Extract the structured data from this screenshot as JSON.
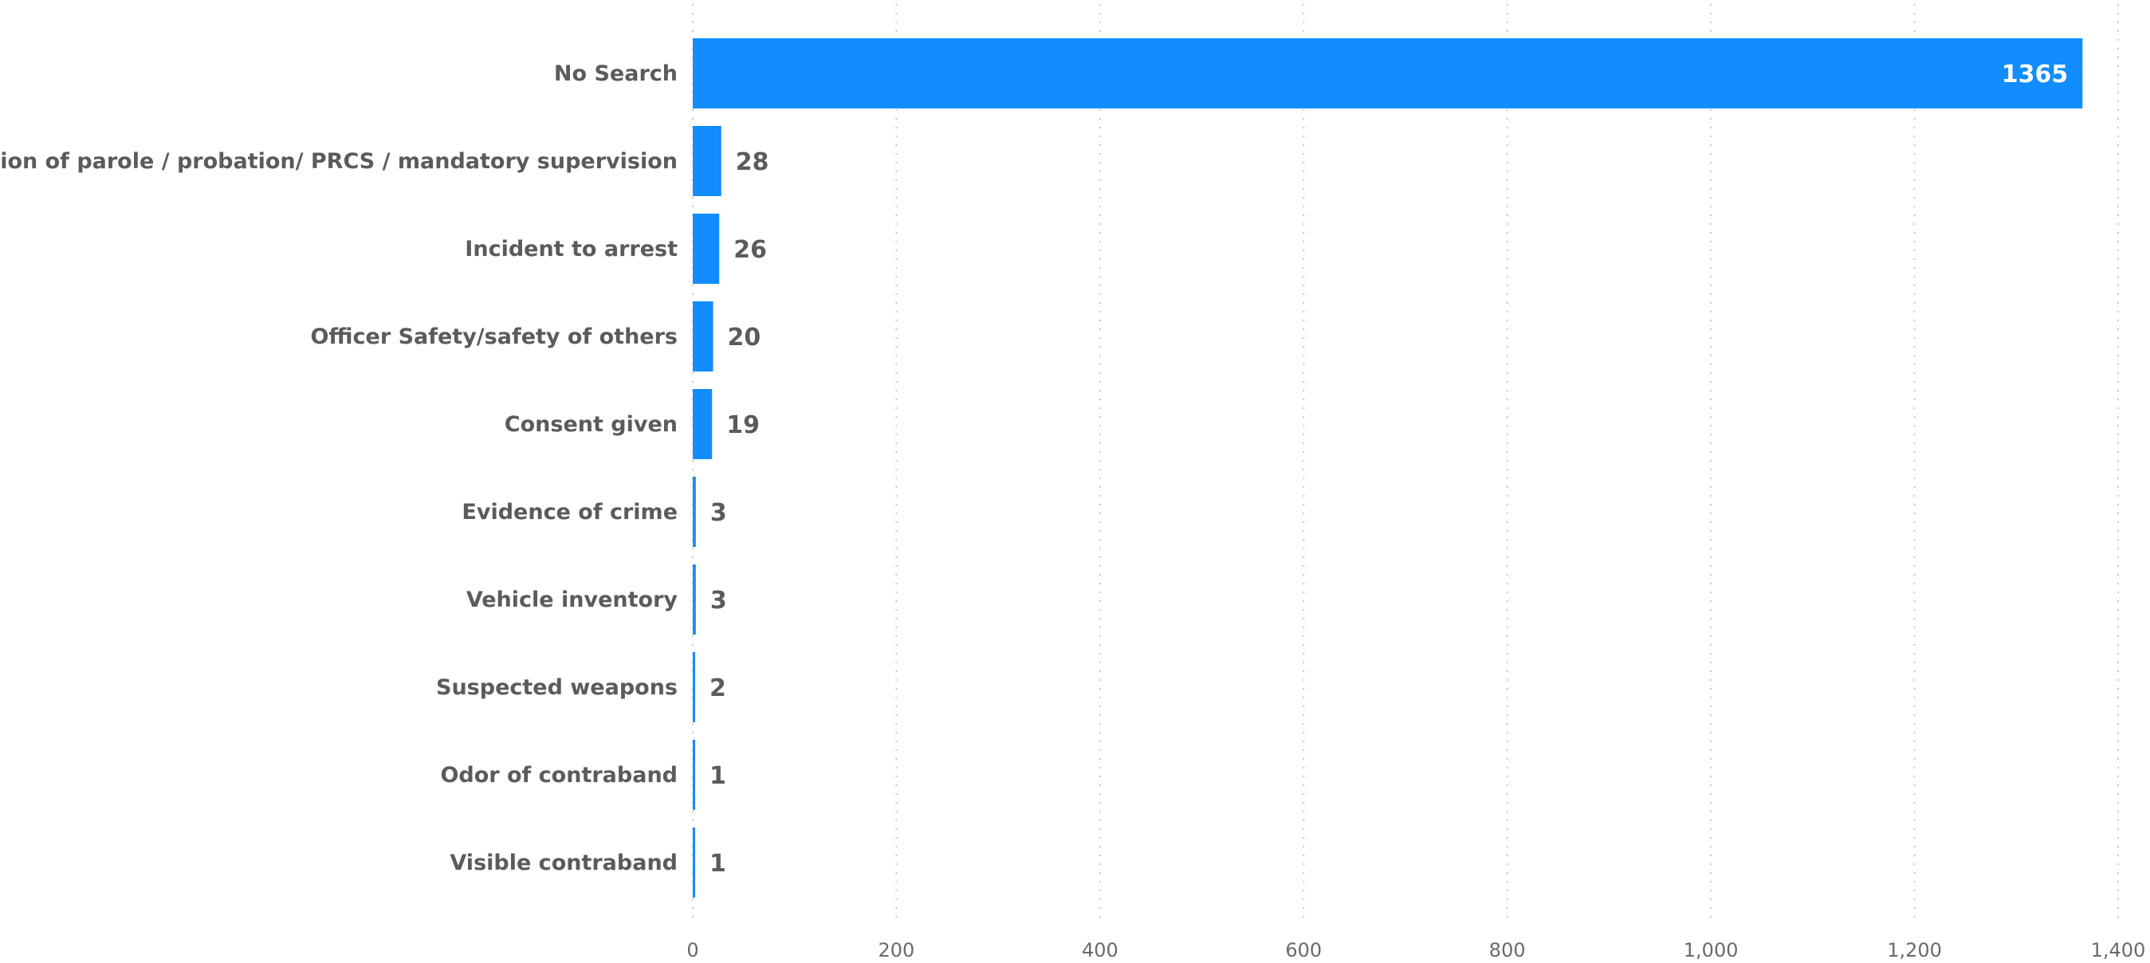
{
  "chart_data": {
    "type": "bar",
    "orientation": "horizontal",
    "title": "",
    "xlabel": "",
    "ylabel": "",
    "categories": [
      "No Search",
      "Condition of parole / probation/ PRCS / mandatory supervision",
      "Incident to arrest",
      "Officer Safety/safety of others",
      "Consent given",
      "Evidence of crime",
      "Vehicle inventory",
      "Suspected weapons",
      "Odor of contraband",
      "Visible contraband"
    ],
    "values": [
      1365,
      28,
      26,
      20,
      19,
      3,
      3,
      2,
      1,
      1
    ],
    "data_labels": [
      "1365",
      "28",
      "26",
      "20",
      "19",
      "3",
      "3",
      "2",
      "1",
      "1"
    ],
    "xlim": [
      0,
      1400
    ],
    "x_ticks": [
      0,
      200,
      400,
      600,
      800,
      1000,
      1200,
      1400
    ],
    "x_tick_labels": [
      "0",
      "200",
      "400",
      "600",
      "800",
      "1,000",
      "1,200",
      "1,400"
    ],
    "grid": "vertical dotted",
    "legend": "none",
    "bar_color": "#118dff"
  }
}
